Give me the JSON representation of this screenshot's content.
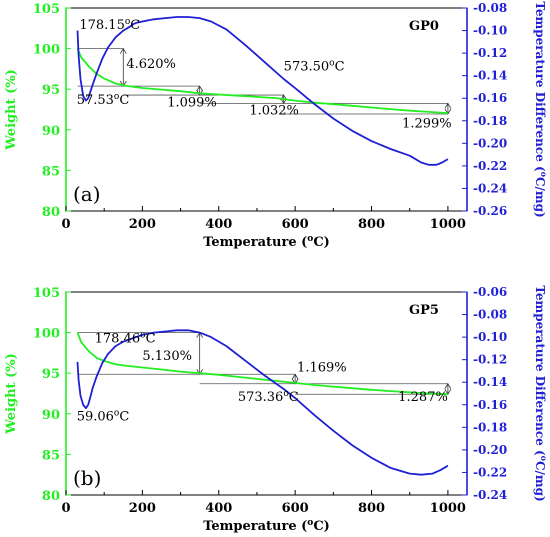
{
  "chart_data": [
    {
      "type": "line",
      "sample": "GP0",
      "panel": "(a)",
      "xlabel": "Temperature (°C)",
      "xlabel_main": "Temperature (",
      "xlabel_sup": "o",
      "xlabel_end": "C)",
      "ylabel_left": "Weight (%)",
      "ylabel_right": "Temperature Difference (°C/mg)",
      "ylabel_right_main": "Temperature Difference (",
      "ylabel_right_sup": "o",
      "ylabel_right_end": "C/mg)",
      "xlim": [
        0,
        1050
      ],
      "xticks": [
        0,
        200,
        400,
        600,
        800,
        1000
      ],
      "ylim_left": [
        80,
        105
      ],
      "yticks_left": [
        80,
        85,
        90,
        95,
        100,
        105
      ],
      "ylim_right": [
        -0.26,
        -0.08
      ],
      "yticks_right": [
        -0.26,
        -0.24,
        -0.22,
        -0.2,
        -0.18,
        -0.16,
        -0.14,
        -0.12,
        -0.1,
        -0.08
      ],
      "series": [
        {
          "axis": "left",
          "color": "#22ee22",
          "x": [
            30,
            40,
            60,
            80,
            100,
            130,
            160,
            200,
            250,
            300,
            350,
            400,
            450,
            500,
            550,
            600,
            650,
            700,
            750,
            800,
            850,
            900,
            950,
            1000
          ],
          "y": [
            100.0,
            98.9,
            97.8,
            96.9,
            96.3,
            95.7,
            95.4,
            95.15,
            94.95,
            94.75,
            94.5,
            94.35,
            94.2,
            94.05,
            93.9,
            93.6,
            93.35,
            93.15,
            92.95,
            92.75,
            92.55,
            92.35,
            92.2,
            92.05
          ]
        },
        {
          "axis": "right",
          "color": "#1f1fd6",
          "x": [
            30,
            33,
            38,
            45,
            52,
            58,
            63,
            70,
            80,
            95,
            110,
            130,
            150,
            165,
            178,
            185,
            200,
            230,
            260,
            290,
            320,
            350,
            380,
            420,
            470,
            520,
            570,
            600,
            650,
            700,
            750,
            800,
            850,
            900,
            930,
            950,
            970,
            985,
            1000
          ],
          "y": [
            -0.1,
            -0.122,
            -0.143,
            -0.158,
            -0.162,
            -0.16,
            -0.155,
            -0.148,
            -0.138,
            -0.125,
            -0.115,
            -0.106,
            -0.1,
            -0.097,
            -0.094,
            -0.093,
            -0.092,
            -0.09,
            -0.089,
            -0.088,
            -0.088,
            -0.089,
            -0.092,
            -0.099,
            -0.113,
            -0.128,
            -0.143,
            -0.151,
            -0.165,
            -0.178,
            -0.189,
            -0.198,
            -0.205,
            -0.211,
            -0.217,
            -0.219,
            -0.219,
            -0.217,
            -0.214
          ]
        }
      ],
      "step_guides": [
        {
          "x1": 30,
          "x2": 150,
          "y_top": 100.0,
          "y_bottom": 95.38
        },
        {
          "x1": 150,
          "x2": 350,
          "y_top": 95.38,
          "y_bottom": 94.28
        },
        {
          "x1": 350,
          "x2": 570,
          "y_top": 94.28,
          "y_bottom": 93.25
        },
        {
          "x1": 570,
          "x2": 1000,
          "y_top": 93.25,
          "y_bottom": 91.95
        }
      ],
      "annotations": [
        {
          "text": "178.15°C",
          "main": "178.15",
          "x": 35,
          "y": 102.4
        },
        {
          "text": "4.620%",
          "main": "4.620%",
          "x": 158,
          "y": 97.6
        },
        {
          "text": "57.53°C",
          "main": "57.53",
          "x": 28,
          "y": 93.2
        },
        {
          "text": "1.099%",
          "main": "1.099%",
          "x": 265,
          "y": 92.9
        },
        {
          "text": "573.50°C",
          "main": "573.50",
          "x": 570,
          "y": 97.3
        },
        {
          "text": "1.032%",
          "main": "1.032%",
          "x": 480,
          "y": 91.9
        },
        {
          "text": "1.299%",
          "main": "1.299%",
          "x": 880,
          "y": 90.3
        }
      ]
    },
    {
      "type": "line",
      "sample": "GP5",
      "panel": "(b)",
      "xlabel": "Temperature (°C)",
      "xlabel_main": "Temperature (",
      "xlabel_sup": "o",
      "xlabel_end": "C)",
      "ylabel_left": "Weight (%)",
      "ylabel_right": "Temperature Difference (°C/mg)",
      "ylabel_right_main": "Temperature Difference (",
      "ylabel_right_sup": "o",
      "ylabel_right_end": "C/mg)",
      "xlim": [
        0,
        1050
      ],
      "xticks": [
        0,
        200,
        400,
        600,
        800,
        1000
      ],
      "ylim_left": [
        80,
        105
      ],
      "yticks_left": [
        80,
        85,
        90,
        95,
        100,
        105
      ],
      "ylim_right": [
        -0.24,
        -0.06
      ],
      "yticks_right": [
        -0.24,
        -0.22,
        -0.2,
        -0.18,
        -0.16,
        -0.14,
        -0.12,
        -0.1,
        -0.08,
        -0.06
      ],
      "series": [
        {
          "axis": "left",
          "color": "#22ee22",
          "x": [
            30,
            40,
            60,
            80,
            100,
            130,
            160,
            200,
            250,
            300,
            350,
            400,
            450,
            500,
            550,
            600,
            650,
            700,
            750,
            800,
            850,
            900,
            950,
            1000
          ],
          "y": [
            100.0,
            98.8,
            97.7,
            96.9,
            96.5,
            96.1,
            95.9,
            95.7,
            95.45,
            95.2,
            95.0,
            94.8,
            94.55,
            94.3,
            94.05,
            93.8,
            93.55,
            93.35,
            93.15,
            92.95,
            92.8,
            92.65,
            92.5,
            92.4
          ]
        },
        {
          "axis": "right",
          "color": "#1f1fd6",
          "x": [
            30,
            33,
            38,
            45,
            52,
            58,
            63,
            70,
            80,
            95,
            110,
            130,
            150,
            175,
            200,
            230,
            260,
            290,
            320,
            350,
            380,
            420,
            470,
            520,
            570,
            600,
            650,
            700,
            750,
            800,
            850,
            900,
            930,
            960,
            980,
            1000
          ],
          "y": [
            -0.122,
            -0.138,
            -0.152,
            -0.16,
            -0.163,
            -0.16,
            -0.154,
            -0.145,
            -0.135,
            -0.123,
            -0.115,
            -0.108,
            -0.104,
            -0.101,
            -0.098,
            -0.096,
            -0.095,
            -0.094,
            -0.094,
            -0.096,
            -0.1,
            -0.108,
            -0.121,
            -0.134,
            -0.146,
            -0.154,
            -0.169,
            -0.183,
            -0.196,
            -0.207,
            -0.216,
            -0.221,
            -0.222,
            -0.221,
            -0.218,
            -0.214
          ]
        }
      ],
      "step_guides": [
        {
          "x1": 30,
          "x2": 350,
          "y_top": 100.0,
          "y_bottom": 94.87
        },
        {
          "x1": 350,
          "x2": 600,
          "y_top": 94.87,
          "y_bottom": 93.7
        },
        {
          "x1": 600,
          "x2": 1000,
          "y_top": 93.7,
          "y_bottom": 92.41
        }
      ],
      "annotations": [
        {
          "text": "178.46°C",
          "main": "178.46",
          "x": 75,
          "y": 98.8
        },
        {
          "text": "5.130%",
          "main": "5.130%",
          "x": 200,
          "y": 96.6
        },
        {
          "text": "59.06°C",
          "main": "59.06",
          "x": 28,
          "y": 89.2
        },
        {
          "text": "1.169%",
          "main": "1.169%",
          "x": 605,
          "y": 95.2
        },
        {
          "text": "573.36°C",
          "main": "573.36",
          "x": 450,
          "y": 91.6
        },
        {
          "text": "1.287%",
          "main": "1.287%",
          "x": 870,
          "y": 91.6
        }
      ]
    }
  ]
}
